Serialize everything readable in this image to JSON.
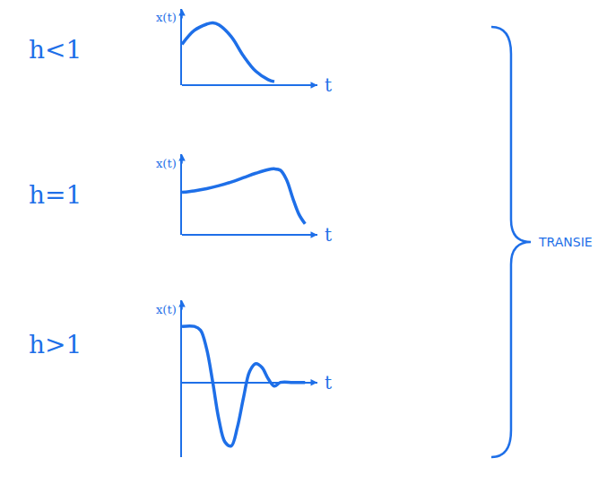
{
  "chart_data": [
    {
      "type": "line",
      "title": "h<1",
      "x_label": "t",
      "y_label": "x(t)",
      "color": "#1e6fe8",
      "tick_labels": false,
      "x": [
        0,
        0.1,
        0.2,
        0.25,
        0.3,
        0.4,
        0.5,
        0.6,
        0.7,
        0.75
      ],
      "values": [
        0.59,
        0.79,
        0.88,
        0.9,
        0.87,
        0.7,
        0.42,
        0.2,
        0.08,
        0.05
      ],
      "xlim": [
        0,
        1.1
      ],
      "ylim": [
        0,
        1.1
      ]
    },
    {
      "type": "line",
      "title": "h=1",
      "x_label": "t",
      "y_label": "x(t)",
      "color": "#1e6fe8",
      "tick_labels": false,
      "x": [
        0,
        0.1,
        0.2,
        0.3,
        0.4,
        0.5,
        0.6,
        0.7,
        0.75,
        0.8,
        0.85,
        0.9,
        0.95,
        1.0
      ],
      "values": [
        0.58,
        0.6,
        0.63,
        0.67,
        0.72,
        0.78,
        0.84,
        0.89,
        0.9,
        0.88,
        0.75,
        0.5,
        0.28,
        0.15
      ],
      "xlim": [
        0,
        1.1
      ],
      "ylim": [
        0,
        1.1
      ]
    },
    {
      "type": "line",
      "title": "h>1",
      "x_label": "t",
      "y_label": "x(t)",
      "color": "#1e6fe8",
      "tick_labels": false,
      "x": [
        0,
        0.1,
        0.15,
        0.2,
        0.25,
        0.3,
        0.35,
        0.4,
        0.45,
        0.5,
        0.55,
        0.6,
        0.65,
        0.7,
        0.75,
        0.8,
        0.9,
        1.0
      ],
      "values": [
        0.75,
        0.75,
        0.7,
        0.45,
        0,
        -0.5,
        -0.8,
        -0.85,
        -0.6,
        -0.2,
        0.15,
        0.25,
        0.2,
        0.05,
        -0.05,
        0,
        0,
        0
      ],
      "xlim": [
        0,
        1.1
      ],
      "ylim": [
        -1,
        1.1
      ]
    }
  ],
  "brace_label": "TRANSIE"
}
